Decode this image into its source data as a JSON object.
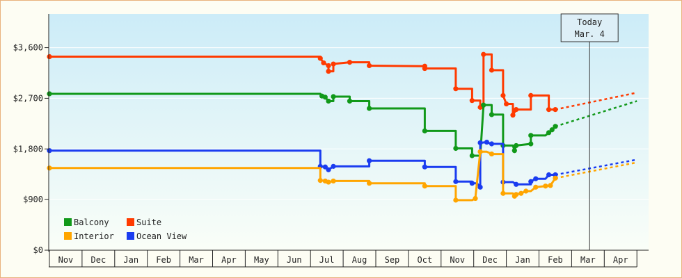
{
  "chart_data": {
    "type": "line",
    "ylim": [
      0,
      4200
    ],
    "y_ticks": [
      {
        "value": 0,
        "label": "$0"
      },
      {
        "value": 900,
        "label": "$900"
      },
      {
        "value": 1800,
        "label": "$1,800"
      },
      {
        "value": 2700,
        "label": "$2,700"
      },
      {
        "value": 3600,
        "label": "$3,600"
      }
    ],
    "x_start_month_index": 0,
    "x_months": [
      "Nov",
      "Dec",
      "Jan",
      "Feb",
      "Mar",
      "Apr",
      "May",
      "Jun",
      "Jul",
      "Aug",
      "Sep",
      "Oct",
      "Nov",
      "Dec",
      "Jan",
      "Feb",
      "Mar",
      "Apr"
    ],
    "today": {
      "line1": "Today",
      "line2": "Mar. 4",
      "x": 16.55
    },
    "legend": {
      "position": "bottom-left",
      "items": [
        {
          "name": "Balcony",
          "color": "#11991a"
        },
        {
          "name": "Suite",
          "color": "#ff3a00"
        },
        {
          "name": "Interior",
          "color": "#ffa500"
        },
        {
          "name": "Ocean View",
          "color": "#1a3cf0"
        }
      ]
    },
    "series": [
      {
        "name": "Suite",
        "color": "#ff3a00",
        "points": [
          [
            0.0,
            3440
          ],
          [
            8.3,
            3440
          ],
          [
            8.3,
            3410
          ],
          [
            8.4,
            3330
          ],
          [
            8.55,
            3280
          ],
          [
            8.55,
            3180
          ],
          [
            8.7,
            3180
          ],
          [
            8.7,
            3310
          ],
          [
            9.2,
            3340
          ],
          [
            9.8,
            3340
          ],
          [
            9.8,
            3280
          ],
          [
            11.5,
            3270
          ],
          [
            11.5,
            3230
          ],
          [
            12.45,
            3230
          ],
          [
            12.45,
            2870
          ],
          [
            12.95,
            2870
          ],
          [
            12.95,
            2660
          ],
          [
            13.2,
            2660
          ],
          [
            13.2,
            2540
          ],
          [
            13.3,
            2540
          ],
          [
            13.3,
            3480
          ],
          [
            13.55,
            3480
          ],
          [
            13.55,
            3200
          ],
          [
            13.9,
            3200
          ],
          [
            13.9,
            2750
          ],
          [
            14.0,
            2600
          ],
          [
            14.2,
            2600
          ],
          [
            14.2,
            2400
          ],
          [
            14.3,
            2500
          ],
          [
            14.75,
            2500
          ],
          [
            14.75,
            2750
          ],
          [
            15.3,
            2750
          ],
          [
            15.3,
            2500
          ],
          [
            15.5,
            2500
          ]
        ],
        "forecast_end": [
          18.0,
          2800
        ]
      },
      {
        "name": "Balcony",
        "color": "#11991a",
        "points": [
          [
            0.0,
            2780
          ],
          [
            8.3,
            2780
          ],
          [
            8.35,
            2740
          ],
          [
            8.45,
            2720
          ],
          [
            8.55,
            2650
          ],
          [
            8.7,
            2650
          ],
          [
            8.7,
            2730
          ],
          [
            9.2,
            2730
          ],
          [
            9.2,
            2650
          ],
          [
            9.8,
            2650
          ],
          [
            9.8,
            2520
          ],
          [
            11.5,
            2520
          ],
          [
            11.5,
            2120
          ],
          [
            12.45,
            2120
          ],
          [
            12.45,
            1810
          ],
          [
            12.95,
            1810
          ],
          [
            12.95,
            1680
          ],
          [
            13.2,
            1680
          ],
          [
            13.3,
            2580
          ],
          [
            13.55,
            2580
          ],
          [
            13.55,
            2410
          ],
          [
            13.9,
            2410
          ],
          [
            13.9,
            1860
          ],
          [
            14.2,
            1860
          ],
          [
            14.25,
            1770
          ],
          [
            14.3,
            1860
          ],
          [
            14.75,
            1890
          ],
          [
            14.75,
            2040
          ],
          [
            15.2,
            2040
          ],
          [
            15.3,
            2090
          ],
          [
            15.4,
            2140
          ],
          [
            15.5,
            2200
          ]
        ],
        "forecast_end": [
          18.0,
          2650
        ]
      },
      {
        "name": "Ocean View",
        "color": "#1a3cf0",
        "points": [
          [
            0.0,
            1770
          ],
          [
            8.3,
            1770
          ],
          [
            8.3,
            1490
          ],
          [
            8.45,
            1480
          ],
          [
            8.55,
            1430
          ],
          [
            8.7,
            1490
          ],
          [
            9.8,
            1490
          ],
          [
            9.8,
            1590
          ],
          [
            11.5,
            1590
          ],
          [
            11.5,
            1480
          ],
          [
            12.45,
            1480
          ],
          [
            12.45,
            1220
          ],
          [
            12.95,
            1220
          ],
          [
            12.95,
            1190
          ],
          [
            13.1,
            1190
          ],
          [
            13.2,
            1120
          ],
          [
            13.2,
            1910
          ],
          [
            13.4,
            1920
          ],
          [
            13.55,
            1890
          ],
          [
            13.9,
            1890
          ],
          [
            13.9,
            1210
          ],
          [
            14.2,
            1210
          ],
          [
            14.3,
            1170
          ],
          [
            14.75,
            1170
          ],
          [
            14.75,
            1220
          ],
          [
            14.9,
            1270
          ],
          [
            15.2,
            1270
          ],
          [
            15.3,
            1340
          ],
          [
            15.5,
            1340
          ]
        ],
        "forecast_end": [
          18.0,
          1610
        ]
      },
      {
        "name": "Interior",
        "color": "#ffa500",
        "points": [
          [
            0.0,
            1460
          ],
          [
            8.3,
            1460
          ],
          [
            8.3,
            1240
          ],
          [
            8.45,
            1230
          ],
          [
            8.55,
            1210
          ],
          [
            8.7,
            1230
          ],
          [
            9.8,
            1230
          ],
          [
            9.8,
            1190
          ],
          [
            11.5,
            1190
          ],
          [
            11.5,
            1140
          ],
          [
            12.45,
            1140
          ],
          [
            12.45,
            890
          ],
          [
            12.95,
            890
          ],
          [
            13.05,
            920
          ],
          [
            13.2,
            1750
          ],
          [
            13.4,
            1750
          ],
          [
            13.55,
            1710
          ],
          [
            13.9,
            1710
          ],
          [
            13.9,
            1010
          ],
          [
            14.2,
            1010
          ],
          [
            14.25,
            960
          ],
          [
            14.3,
            990
          ],
          [
            14.45,
            1010
          ],
          [
            14.6,
            1050
          ],
          [
            14.75,
            1050
          ],
          [
            14.9,
            1120
          ],
          [
            15.2,
            1140
          ],
          [
            15.35,
            1150
          ],
          [
            15.5,
            1280
          ]
        ],
        "forecast_end": [
          18.0,
          1560
        ]
      }
    ]
  }
}
